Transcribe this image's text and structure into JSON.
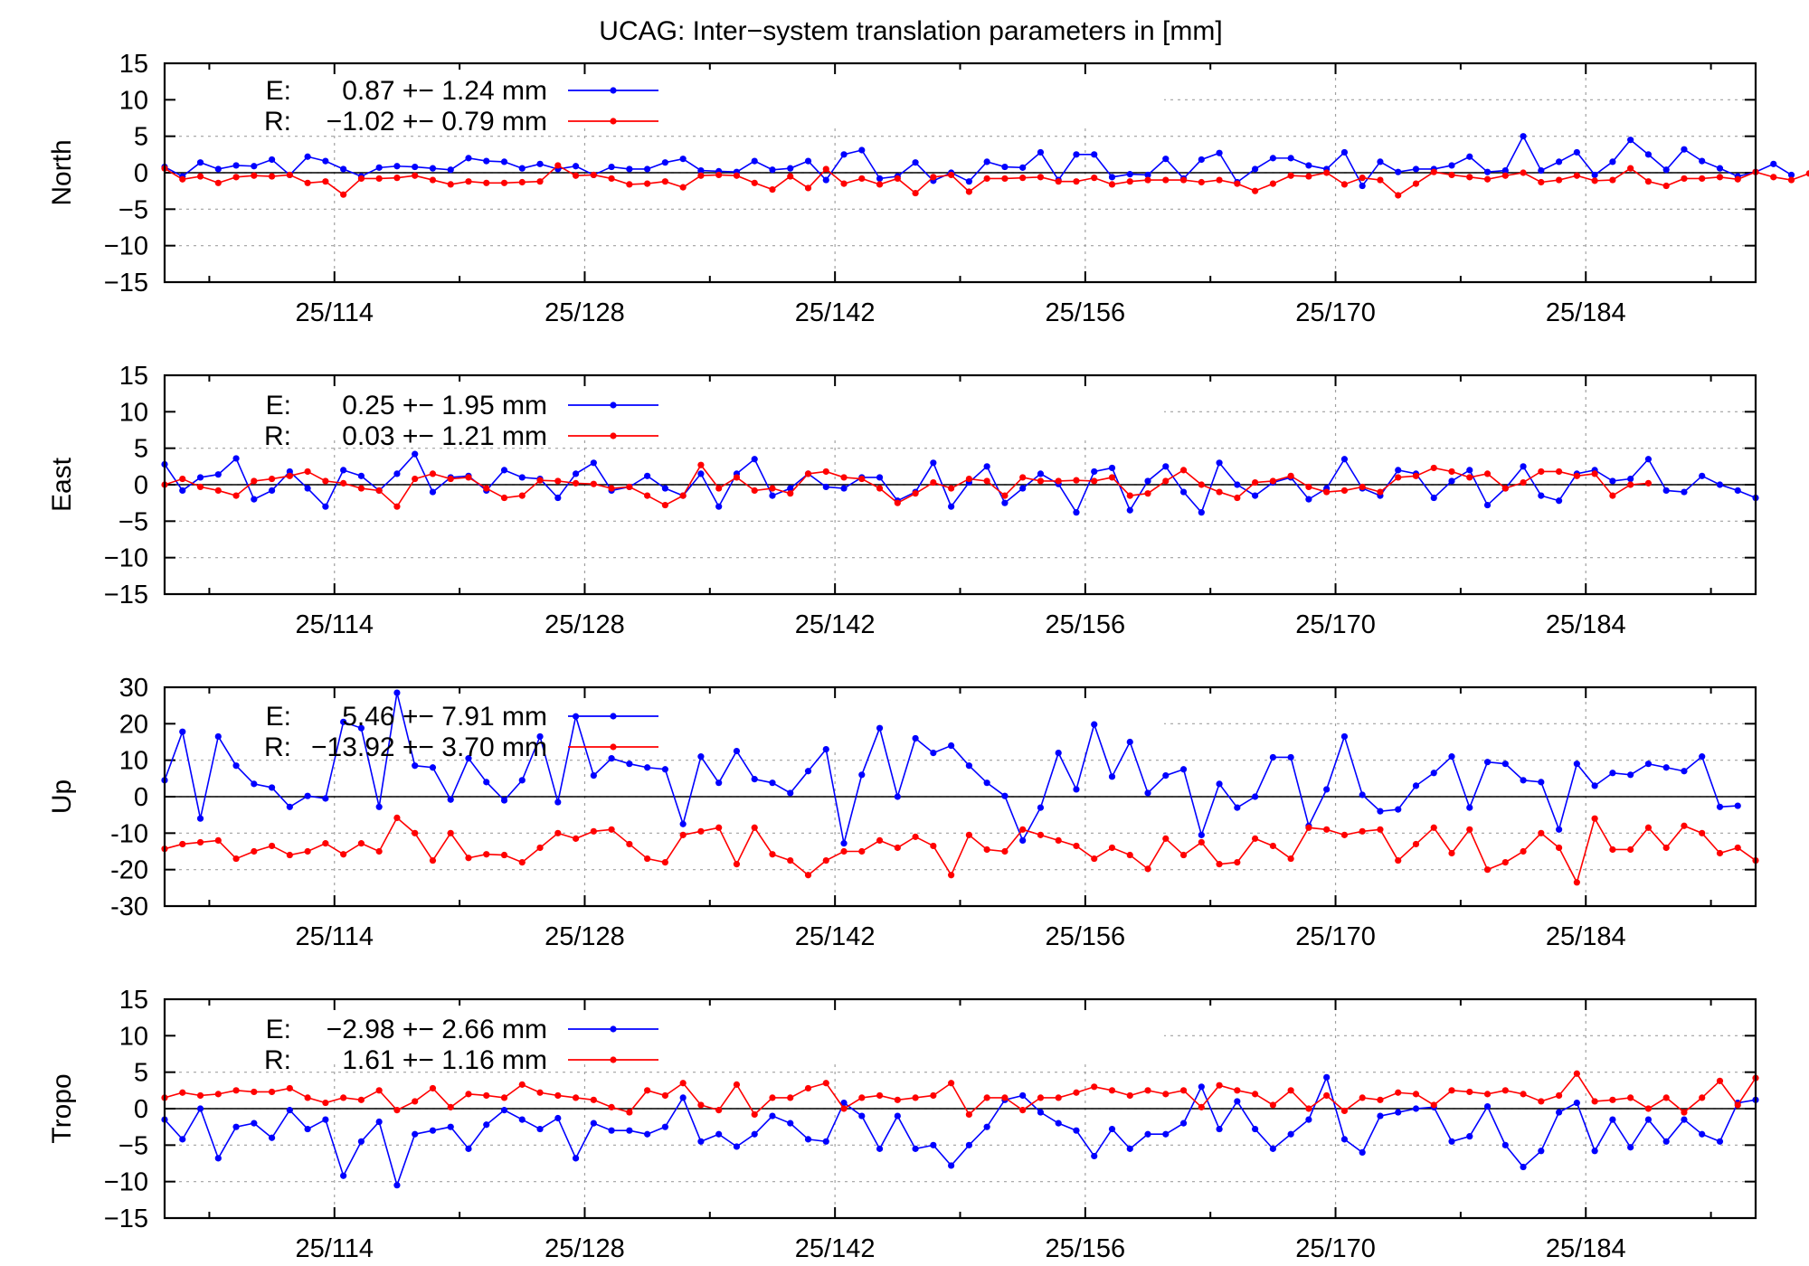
{
  "chart_data": {
    "title": "UCAG: Inter−system translation parameters in [mm]",
    "x_ticks": [
      {
        "day": 114,
        "label": "25/114"
      },
      {
        "day": 128,
        "label": "25/128"
      },
      {
        "day": 142,
        "label": "25/142"
      },
      {
        "day": 156,
        "label": "25/156"
      },
      {
        "day": 170,
        "label": "25/170"
      },
      {
        "day": 184,
        "label": "25/184"
      }
    ],
    "xlim": [
      104.5,
      193.5
    ],
    "x_start": 104.5,
    "x_step": 1,
    "grid": true,
    "legend_position": "top-left",
    "colors": {
      "E": "#0000ff",
      "R": "#ff0000"
    },
    "panels": [
      {
        "type": "line",
        "ylabel": "North",
        "ylim": [
          -15,
          15
        ],
        "yticks": [
          15,
          10,
          5,
          0,
          -5,
          -10,
          -15
        ],
        "ytick_labels": [
          "15",
          "10",
          "5",
          "0",
          "−5",
          "−10",
          "−15"
        ],
        "series": [
          {
            "key": "E",
            "legend_label": "E:",
            "legend_stat": "0.87 +− 1.24 mm",
            "color": "#0000ff",
            "values": [
              0.8,
              -0.5,
              1.4,
              0.5,
              1.0,
              0.9,
              1.8,
              -0.3,
              2.2,
              1.6,
              0.5,
              -0.5,
              0.7,
              0.9,
              0.8,
              0.6,
              0.4,
              2.0,
              1.6,
              1.5,
              0.6,
              1.2,
              0.5,
              0.9,
              -0.3,
              0.8,
              0.5,
              0.5,
              1.4,
              1.9,
              0.3,
              0.2,
              0.1,
              1.6,
              0.4,
              0.6,
              1.6,
              -1.0,
              2.5,
              3.1,
              -0.8,
              -0.5,
              1.4,
              -1.1,
              0.0,
              -1.2,
              1.5,
              0.8,
              0.7,
              2.8,
              -1.0,
              2.5,
              2.5,
              -0.6,
              -0.2,
              -0.3,
              1.9,
              -0.8,
              1.8,
              2.7,
              -1.3,
              0.5,
              2.0,
              2.0,
              1.0,
              0.5,
              2.8,
              -1.8,
              1.5,
              0.1,
              0.5,
              0.5,
              1.0,
              2.2,
              0.1,
              0.3,
              5.0,
              0.3,
              1.5,
              2.8,
              -0.3,
              1.5,
              4.5,
              2.5,
              0.4,
              3.2,
              1.6,
              0.6,
              -0.5,
              0.1,
              1.2,
              -0.3
            ]
          },
          {
            "key": "R",
            "legend_label": "R:",
            "legend_stat": "−1.02 +− 0.79 mm",
            "color": "#ff0000",
            "values": [
              0.6,
              -0.9,
              -0.5,
              -1.4,
              -0.6,
              -0.4,
              -0.5,
              -0.3,
              -1.4,
              -1.2,
              -3.0,
              -0.8,
              -0.8,
              -0.7,
              -0.4,
              -1.0,
              -1.6,
              -1.2,
              -1.4,
              -1.4,
              -1.3,
              -1.2,
              1.0,
              -0.4,
              -0.3,
              -0.8,
              -1.6,
              -1.5,
              -1.2,
              -2.0,
              -0.4,
              -0.3,
              -0.4,
              -1.4,
              -2.3,
              -0.5,
              -2.1,
              0.5,
              -1.5,
              -0.8,
              -1.6,
              -0.8,
              -2.8,
              -0.6,
              -0.3,
              -2.6,
              -0.8,
              -0.8,
              -0.7,
              -0.6,
              -1.2,
              -1.2,
              -0.7,
              -1.6,
              -1.2,
              -1.0,
              -1.0,
              -1.0,
              -1.3,
              -1.0,
              -1.5,
              -2.5,
              -1.5,
              -0.4,
              -0.5,
              0.0,
              -1.6,
              -0.7,
              -1.0,
              -3.1,
              -1.5,
              0.1,
              -0.3,
              -0.6,
              -0.9,
              -0.4,
              0.0,
              -1.3,
              -1.0,
              -0.4,
              -1.1,
              -1.0,
              0.6,
              -1.2,
              -1.8,
              -0.8,
              -0.8,
              -0.6,
              -0.9,
              0.1,
              -0.6,
              -1.0,
              -0.1
            ]
          }
        ]
      },
      {
        "type": "line",
        "ylabel": "East",
        "ylim": [
          -15,
          15
        ],
        "yticks": [
          15,
          10,
          5,
          0,
          -5,
          -10,
          -15
        ],
        "ytick_labels": [
          "15",
          "10",
          "5",
          "0",
          "−5",
          "−10",
          "−15"
        ],
        "series": [
          {
            "key": "E",
            "legend_label": "E:",
            "legend_stat": "0.25 +− 1.95 mm",
            "color": "#0000ff",
            "values": [
              2.8,
              -0.8,
              1.0,
              1.4,
              3.6,
              -2.0,
              -0.8,
              1.8,
              -0.5,
              -3.0,
              2.0,
              1.2,
              -0.8,
              1.5,
              4.2,
              -1.0,
              1.0,
              1.2,
              -0.8,
              2.0,
              1.0,
              0.8,
              -1.8,
              1.5,
              3.0,
              -0.8,
              -0.3,
              1.2,
              -0.5,
              -1.5,
              1.5,
              -3.0,
              1.5,
              3.5,
              -1.5,
              -0.5,
              1.5,
              -0.3,
              -0.5,
              1.0,
              1.0,
              -2.2,
              -1.0,
              3.0,
              -3.0,
              0.3,
              2.5,
              -2.5,
              -0.5,
              1.5,
              0.1,
              -3.8,
              1.8,
              2.3,
              -3.5,
              0.5,
              2.5,
              -1.0,
              -3.8,
              3.0,
              0.0,
              -1.5,
              0.3,
              1.0,
              -2.0,
              -0.5,
              3.5,
              -0.5,
              -1.5,
              2.0,
              1.5,
              -1.8,
              0.5,
              2.0,
              -2.8,
              -0.5,
              2.5,
              -1.5,
              -2.2,
              1.5,
              2.0,
              0.5,
              0.8,
              3.5,
              -0.8,
              -1.0,
              1.2,
              0.0,
              -0.8,
              -1.8
            ]
          },
          {
            "key": "R",
            "legend_label": "R:",
            "legend_stat": "0.03 +− 1.21 mm",
            "color": "#ff0000",
            "values": [
              0.0,
              0.8,
              -0.3,
              -0.8,
              -1.5,
              0.5,
              0.8,
              1.2,
              1.8,
              0.5,
              0.2,
              -0.5,
              -0.8,
              -3.0,
              0.8,
              1.5,
              0.8,
              1.0,
              -0.5,
              -1.8,
              -1.5,
              0.6,
              0.5,
              0.2,
              0.1,
              -0.5,
              -0.3,
              -1.5,
              -2.8,
              -1.5,
              2.7,
              -0.5,
              1.0,
              -0.8,
              -0.5,
              -1.2,
              1.5,
              1.8,
              1.0,
              0.8,
              -0.5,
              -2.5,
              -1.2,
              0.3,
              -0.5,
              0.8,
              0.5,
              -1.5,
              1.0,
              0.5,
              0.5,
              0.6,
              0.5,
              1.0,
              -1.5,
              -1.2,
              0.5,
              2.0,
              0.0,
              -1.0,
              -1.8,
              0.3,
              0.5,
              1.2,
              -0.3,
              -1.0,
              -0.8,
              -0.3,
              -1.0,
              1.0,
              1.2,
              2.3,
              1.8,
              1.0,
              1.5,
              -0.5,
              0.3,
              1.8,
              1.8,
              1.2,
              1.5,
              -1.5,
              0.0,
              0.2
            ]
          }
        ]
      },
      {
        "type": "line",
        "ylabel": "Up",
        "ylim": [
          -30,
          30
        ],
        "yticks": [
          30,
          20,
          10,
          0,
          -10,
          -20,
          -30
        ],
        "ytick_labels": [
          "30",
          "20",
          "10",
          "0",
          "-10",
          "-20",
          "-30"
        ],
        "series": [
          {
            "key": "E",
            "legend_label": "E:",
            "legend_stat": "5.46 +− 7.91 mm",
            "color": "#0000ff",
            "values": [
              4.5,
              17.8,
              -6.0,
              16.5,
              8.5,
              3.5,
              2.5,
              -2.8,
              0.2,
              -0.5,
              20.5,
              18.8,
              -2.8,
              28.5,
              8.5,
              8.0,
              -0.8,
              10.5,
              4.0,
              -1.0,
              4.5,
              16.5,
              -1.5,
              22.0,
              5.8,
              10.5,
              9.0,
              8.0,
              7.5,
              -7.5,
              11.0,
              3.8,
              12.5,
              4.8,
              3.8,
              1.0,
              7.0,
              13.0,
              -12.8,
              6.0,
              18.8,
              0.0,
              16.0,
              12.0,
              14.0,
              8.5,
              3.8,
              0.2,
              -12.0,
              -3.0,
              12.0,
              2.0,
              19.8,
              5.5,
              15.0,
              1.0,
              5.8,
              7.5,
              -10.5,
              3.5,
              -3.0,
              0.0,
              10.8,
              10.8,
              -8.0,
              2.0,
              16.5,
              0.5,
              -4.0,
              -3.5,
              3.0,
              6.5,
              11.0,
              -3.0,
              9.5,
              9.0,
              4.5,
              4.0,
              -9.0,
              9.0,
              3.0,
              6.5,
              6.0,
              9.0,
              8.0,
              7.0,
              11.0,
              -2.8,
              -2.5
            ]
          },
          {
            "key": "R",
            "legend_label": "R:",
            "legend_stat": "−13.92 +− 3.70 mm",
            "color": "#ff0000",
            "values": [
              -14.3,
              -13.0,
              -12.5,
              -12.0,
              -17.0,
              -15.0,
              -13.5,
              -16.0,
              -15.0,
              -12.8,
              -15.8,
              -12.8,
              -15.0,
              -5.8,
              -10.0,
              -17.5,
              -10.0,
              -16.8,
              -15.8,
              -16.0,
              -18.0,
              -14.0,
              -10.0,
              -11.5,
              -9.5,
              -9.0,
              -13.0,
              -17.0,
              -18.0,
              -10.5,
              -9.5,
              -8.5,
              -18.5,
              -8.5,
              -15.8,
              -17.5,
              -21.5,
              -17.5,
              -15.0,
              -15.0,
              -12.0,
              -14.0,
              -11.0,
              -13.5,
              -21.5,
              -10.5,
              -14.5,
              -15.0,
              -9.0,
              -10.5,
              -12.0,
              -13.5,
              -17.0,
              -14.0,
              -16.0,
              -19.8,
              -11.5,
              -16.0,
              -12.5,
              -18.5,
              -18.0,
              -11.5,
              -13.5,
              -17.0,
              -8.5,
              -9.0,
              -10.5,
              -9.5,
              -9.0,
              -17.5,
              -13.0,
              -8.5,
              -15.5,
              -9.0,
              -20.0,
              -18.0,
              -15.0,
              -10.0,
              -14.0,
              -23.5,
              -6.0,
              -14.5,
              -14.5,
              -8.5,
              -14.0,
              -8.0,
              -10.0,
              -15.5,
              -14.0,
              -17.5
            ]
          }
        ]
      },
      {
        "type": "line",
        "ylabel": "Tropo",
        "ylim": [
          -15,
          15
        ],
        "yticks": [
          15,
          10,
          5,
          0,
          -5,
          -10,
          -15
        ],
        "ytick_labels": [
          "15",
          "10",
          "5",
          "0",
          "−5",
          "−10",
          "−15"
        ],
        "series": [
          {
            "key": "E",
            "legend_label": "E:",
            "legend_stat": "−2.98 +− 2.66 mm",
            "color": "#0000ff",
            "values": [
              -1.5,
              -4.2,
              0.0,
              -6.8,
              -2.5,
              -2.0,
              -4.0,
              -0.2,
              -2.8,
              -1.5,
              -9.2,
              -4.5,
              -1.8,
              -10.5,
              -3.5,
              -3.0,
              -2.5,
              -5.5,
              -2.2,
              -0.2,
              -1.5,
              -2.8,
              -1.3,
              -6.8,
              -2.0,
              -3.0,
              -3.0,
              -3.5,
              -2.5,
              1.5,
              -4.5,
              -3.5,
              -5.2,
              -3.5,
              -1.0,
              -2.0,
              -4.2,
              -4.5,
              0.8,
              -1.0,
              -5.5,
              -1.0,
              -5.5,
              -5.0,
              -7.8,
              -5.0,
              -2.5,
              1.2,
              1.8,
              -0.5,
              -2.0,
              -3.0,
              -6.5,
              -2.8,
              -5.5,
              -3.5,
              -3.5,
              -2.0,
              3.0,
              -2.8,
              1.0,
              -2.8,
              -5.5,
              -3.5,
              -1.5,
              4.3,
              -4.2,
              -6.0,
              -1.0,
              -0.5,
              0.0,
              0.2,
              -4.5,
              -3.8,
              0.3,
              -5.0,
              -8.0,
              -5.8,
              -0.5,
              0.8,
              -5.8,
              -1.5,
              -5.3,
              -1.5,
              -4.5,
              -1.5,
              -3.5,
              -4.5,
              0.8,
              1.2
            ]
          },
          {
            "key": "R",
            "legend_label": "R:",
            "legend_stat": "1.61 +− 1.16 mm",
            "color": "#ff0000",
            "values": [
              1.5,
              2.2,
              1.8,
              2.0,
              2.5,
              2.3,
              2.3,
              2.8,
              1.5,
              0.8,
              1.5,
              1.2,
              2.5,
              -0.2,
              1.0,
              2.8,
              0.2,
              2.0,
              1.8,
              1.5,
              3.3,
              2.2,
              1.8,
              1.5,
              1.2,
              0.2,
              -0.5,
              2.5,
              1.8,
              3.5,
              0.5,
              -0.2,
              3.3,
              -0.8,
              1.5,
              1.5,
              2.8,
              3.5,
              0.0,
              1.5,
              1.8,
              1.2,
              1.5,
              1.8,
              3.5,
              -0.8,
              1.5,
              1.5,
              -0.2,
              1.5,
              1.5,
              2.2,
              3.0,
              2.5,
              1.8,
              2.5,
              2.0,
              2.5,
              0.2,
              3.2,
              2.5,
              2.0,
              0.5,
              2.5,
              0.0,
              1.8,
              -0.3,
              1.5,
              1.2,
              2.2,
              2.0,
              0.5,
              2.5,
              2.3,
              2.0,
              2.5,
              2.0,
              1.0,
              1.8,
              4.8,
              1.0,
              1.2,
              1.5,
              0.0,
              1.5,
              -0.5,
              1.5,
              3.8,
              0.5,
              4.2
            ]
          }
        ]
      }
    ]
  }
}
